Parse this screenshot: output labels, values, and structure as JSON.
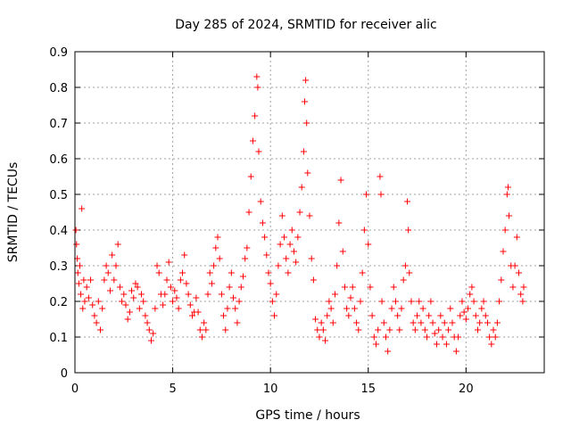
{
  "chart_data": {
    "type": "scatter",
    "title": "Day 285 of 2024, SRMTID for receiver alic",
    "xlabel": "GPS time / hours",
    "ylabel": "SRMTID / TECUs",
    "xlim": [
      0,
      24
    ],
    "ylim": [
      0,
      0.9
    ],
    "xticks": [
      0,
      5,
      10,
      15,
      20
    ],
    "yticks": [
      0,
      0.1,
      0.2,
      0.3,
      0.4,
      0.5,
      0.6,
      0.7,
      0.8,
      0.9
    ],
    "grid": true,
    "marker": "plus",
    "color": "#ff0000",
    "series": [
      {
        "name": "alic",
        "points": [
          [
            0.05,
            0.4
          ],
          [
            0.08,
            0.36
          ],
          [
            0.12,
            0.32
          ],
          [
            0.15,
            0.28
          ],
          [
            0.2,
            0.25
          ],
          [
            0.25,
            0.3
          ],
          [
            0.3,
            0.22
          ],
          [
            0.35,
            0.46
          ],
          [
            0.4,
            0.18
          ],
          [
            0.45,
            0.26
          ],
          [
            0.5,
            0.2
          ],
          [
            0.6,
            0.24
          ],
          [
            0.7,
            0.21
          ],
          [
            0.8,
            0.26
          ],
          [
            0.9,
            0.19
          ],
          [
            1.0,
            0.16
          ],
          [
            1.1,
            0.14
          ],
          [
            1.2,
            0.2
          ],
          [
            1.3,
            0.12
          ],
          [
            1.4,
            0.18
          ],
          [
            1.5,
            0.26
          ],
          [
            1.6,
            0.3
          ],
          [
            1.7,
            0.28
          ],
          [
            1.8,
            0.23
          ],
          [
            1.9,
            0.33
          ],
          [
            2.0,
            0.26
          ],
          [
            2.1,
            0.3
          ],
          [
            2.2,
            0.36
          ],
          [
            2.3,
            0.24
          ],
          [
            2.4,
            0.2
          ],
          [
            2.5,
            0.22
          ],
          [
            2.6,
            0.19
          ],
          [
            2.7,
            0.15
          ],
          [
            2.8,
            0.17
          ],
          [
            2.9,
            0.23
          ],
          [
            3.0,
            0.21
          ],
          [
            3.1,
            0.25
          ],
          [
            3.2,
            0.24
          ],
          [
            3.3,
            0.18
          ],
          [
            3.4,
            0.22
          ],
          [
            3.5,
            0.2
          ],
          [
            3.6,
            0.16
          ],
          [
            3.7,
            0.14
          ],
          [
            3.8,
            0.12
          ],
          [
            3.9,
            0.09
          ],
          [
            4.0,
            0.11
          ],
          [
            4.1,
            0.18
          ],
          [
            4.2,
            0.3
          ],
          [
            4.3,
            0.28
          ],
          [
            4.4,
            0.22
          ],
          [
            4.5,
            0.19
          ],
          [
            4.6,
            0.22
          ],
          [
            4.7,
            0.26
          ],
          [
            4.8,
            0.31
          ],
          [
            4.9,
            0.24
          ],
          [
            5.0,
            0.2
          ],
          [
            5.1,
            0.23
          ],
          [
            5.2,
            0.21
          ],
          [
            5.3,
            0.18
          ],
          [
            5.4,
            0.26
          ],
          [
            5.5,
            0.28
          ],
          [
            5.6,
            0.33
          ],
          [
            5.7,
            0.25
          ],
          [
            5.8,
            0.22
          ],
          [
            5.9,
            0.19
          ],
          [
            6.0,
            0.16
          ],
          [
            6.1,
            0.17
          ],
          [
            6.2,
            0.21
          ],
          [
            6.3,
            0.17
          ],
          [
            6.4,
            0.12
          ],
          [
            6.5,
            0.1
          ],
          [
            6.6,
            0.14
          ],
          [
            6.7,
            0.12
          ],
          [
            6.8,
            0.22
          ],
          [
            6.9,
            0.28
          ],
          [
            7.0,
            0.25
          ],
          [
            7.1,
            0.3
          ],
          [
            7.2,
            0.35
          ],
          [
            7.3,
            0.38
          ],
          [
            7.4,
            0.32
          ],
          [
            7.5,
            0.22
          ],
          [
            7.6,
            0.16
          ],
          [
            7.7,
            0.12
          ],
          [
            7.8,
            0.18
          ],
          [
            7.9,
            0.24
          ],
          [
            8.0,
            0.28
          ],
          [
            8.1,
            0.21
          ],
          [
            8.2,
            0.18
          ],
          [
            8.3,
            0.14
          ],
          [
            8.4,
            0.2
          ],
          [
            8.5,
            0.24
          ],
          [
            8.6,
            0.27
          ],
          [
            8.7,
            0.32
          ],
          [
            8.8,
            0.35
          ],
          [
            8.9,
            0.45
          ],
          [
            9.0,
            0.55
          ],
          [
            9.1,
            0.65
          ],
          [
            9.2,
            0.72
          ],
          [
            9.3,
            0.83
          ],
          [
            9.35,
            0.8
          ],
          [
            9.4,
            0.62
          ],
          [
            9.5,
            0.48
          ],
          [
            9.6,
            0.42
          ],
          [
            9.7,
            0.38
          ],
          [
            9.8,
            0.33
          ],
          [
            9.9,
            0.28
          ],
          [
            10.0,
            0.25
          ],
          [
            10.1,
            0.2
          ],
          [
            10.2,
            0.16
          ],
          [
            10.3,
            0.22
          ],
          [
            10.4,
            0.3
          ],
          [
            10.5,
            0.36
          ],
          [
            10.6,
            0.44
          ],
          [
            10.7,
            0.38
          ],
          [
            10.8,
            0.32
          ],
          [
            10.9,
            0.28
          ],
          [
            11.0,
            0.36
          ],
          [
            11.1,
            0.4
          ],
          [
            11.2,
            0.34
          ],
          [
            11.3,
            0.31
          ],
          [
            11.4,
            0.38
          ],
          [
            11.5,
            0.45
          ],
          [
            11.6,
            0.52
          ],
          [
            11.7,
            0.62
          ],
          [
            11.75,
            0.76
          ],
          [
            11.8,
            0.82
          ],
          [
            11.85,
            0.7
          ],
          [
            11.9,
            0.56
          ],
          [
            12.0,
            0.44
          ],
          [
            12.1,
            0.32
          ],
          [
            12.2,
            0.26
          ],
          [
            12.3,
            0.15
          ],
          [
            12.4,
            0.12
          ],
          [
            12.5,
            0.1
          ],
          [
            12.6,
            0.14
          ],
          [
            12.7,
            0.12
          ],
          [
            12.8,
            0.09
          ],
          [
            12.9,
            0.16
          ],
          [
            13.0,
            0.2
          ],
          [
            13.1,
            0.18
          ],
          [
            13.2,
            0.14
          ],
          [
            13.3,
            0.22
          ],
          [
            13.4,
            0.3
          ],
          [
            13.5,
            0.42
          ],
          [
            13.6,
            0.54
          ],
          [
            13.7,
            0.34
          ],
          [
            13.8,
            0.24
          ],
          [
            13.9,
            0.18
          ],
          [
            14.0,
            0.16
          ],
          [
            14.1,
            0.21
          ],
          [
            14.2,
            0.24
          ],
          [
            14.3,
            0.18
          ],
          [
            14.4,
            0.14
          ],
          [
            14.5,
            0.12
          ],
          [
            14.6,
            0.2
          ],
          [
            14.7,
            0.28
          ],
          [
            14.8,
            0.4
          ],
          [
            14.9,
            0.5
          ],
          [
            15.0,
            0.36
          ],
          [
            15.1,
            0.24
          ],
          [
            15.2,
            0.16
          ],
          [
            15.3,
            0.1
          ],
          [
            15.4,
            0.08
          ],
          [
            15.5,
            0.12
          ],
          [
            15.6,
            0.55
          ],
          [
            15.65,
            0.5
          ],
          [
            15.7,
            0.2
          ],
          [
            15.8,
            0.14
          ],
          [
            15.9,
            0.1
          ],
          [
            16.0,
            0.06
          ],
          [
            16.1,
            0.12
          ],
          [
            16.2,
            0.18
          ],
          [
            16.3,
            0.24
          ],
          [
            16.4,
            0.2
          ],
          [
            16.5,
            0.16
          ],
          [
            16.6,
            0.12
          ],
          [
            16.7,
            0.18
          ],
          [
            16.8,
            0.26
          ],
          [
            16.9,
            0.3
          ],
          [
            17.0,
            0.48
          ],
          [
            17.05,
            0.4
          ],
          [
            17.1,
            0.28
          ],
          [
            17.2,
            0.2
          ],
          [
            17.3,
            0.14
          ],
          [
            17.4,
            0.12
          ],
          [
            17.5,
            0.16
          ],
          [
            17.6,
            0.2
          ],
          [
            17.7,
            0.14
          ],
          [
            17.8,
            0.18
          ],
          [
            17.9,
            0.12
          ],
          [
            18.0,
            0.1
          ],
          [
            18.1,
            0.16
          ],
          [
            18.2,
            0.2
          ],
          [
            18.3,
            0.14
          ],
          [
            18.4,
            0.11
          ],
          [
            18.5,
            0.08
          ],
          [
            18.6,
            0.12
          ],
          [
            18.7,
            0.16
          ],
          [
            18.8,
            0.1
          ],
          [
            18.9,
            0.14
          ],
          [
            19.0,
            0.08
          ],
          [
            19.1,
            0.12
          ],
          [
            19.2,
            0.18
          ],
          [
            19.3,
            0.14
          ],
          [
            19.4,
            0.1
          ],
          [
            19.5,
            0.06
          ],
          [
            19.6,
            0.1
          ],
          [
            19.7,
            0.16
          ],
          [
            19.8,
            0.2
          ],
          [
            19.9,
            0.17
          ],
          [
            20.0,
            0.15
          ],
          [
            20.1,
            0.18
          ],
          [
            20.2,
            0.22
          ],
          [
            20.3,
            0.24
          ],
          [
            20.4,
            0.2
          ],
          [
            20.5,
            0.16
          ],
          [
            20.6,
            0.12
          ],
          [
            20.7,
            0.14
          ],
          [
            20.8,
            0.18
          ],
          [
            20.9,
            0.2
          ],
          [
            21.0,
            0.16
          ],
          [
            21.1,
            0.14
          ],
          [
            21.2,
            0.1
          ],
          [
            21.3,
            0.08
          ],
          [
            21.4,
            0.12
          ],
          [
            21.5,
            0.1
          ],
          [
            21.6,
            0.14
          ],
          [
            21.7,
            0.2
          ],
          [
            21.8,
            0.26
          ],
          [
            21.9,
            0.34
          ],
          [
            22.0,
            0.4
          ],
          [
            22.1,
            0.5
          ],
          [
            22.15,
            0.52
          ],
          [
            22.2,
            0.44
          ],
          [
            22.3,
            0.3
          ],
          [
            22.4,
            0.24
          ],
          [
            22.5,
            0.3
          ],
          [
            22.6,
            0.38
          ],
          [
            22.7,
            0.28
          ],
          [
            22.8,
            0.22
          ],
          [
            22.9,
            0.2
          ],
          [
            22.95,
            0.24
          ]
        ]
      }
    ]
  }
}
